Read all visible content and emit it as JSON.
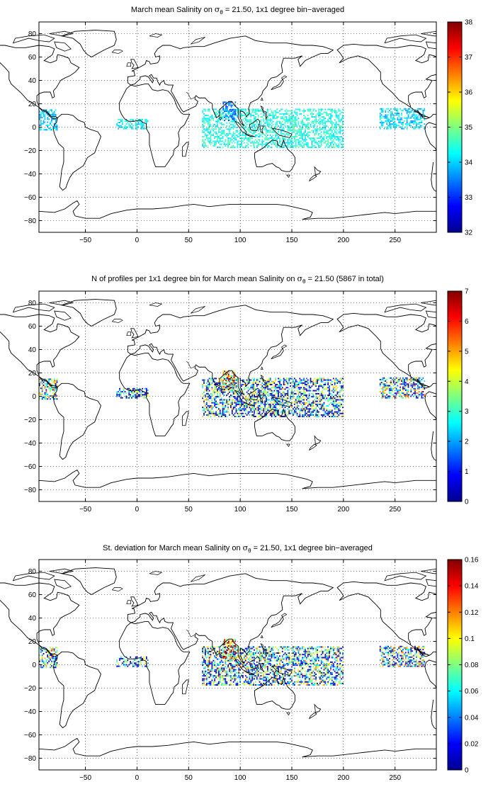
{
  "panels": [
    {
      "id": "mean",
      "title_pre": "March mean Salinity on ",
      "title_sigma": "σ",
      "title_sub": "θ",
      "title_post": " = 21.50, 1x1 degree bin−averaged",
      "colorbar_ticks": [
        "38",
        "37",
        "36",
        "35",
        "34",
        "33",
        "32"
      ]
    },
    {
      "id": "count",
      "title_pre": "N of profiles per 1x1 degree bin for March mean Salinity on ",
      "title_sigma": "σ",
      "title_sub": "θ",
      "title_post": " = 21.50 (5867 in total)",
      "colorbar_ticks": [
        "7",
        "6",
        "5",
        "4",
        "3",
        "2",
        "1",
        "0"
      ]
    },
    {
      "id": "std",
      "title_pre": "St. deviation for March mean Salinity on ",
      "title_sigma": "σ",
      "title_sub": "θ",
      "title_post": " = 21.50, 1x1 degree bin−averaged",
      "colorbar_ticks": [
        "0.16",
        "0.14",
        "0.12",
        "0.1",
        "0.08",
        "0.06",
        "0.04",
        "0.02",
        "0"
      ]
    }
  ],
  "x_tick_labels": [
    "−50",
    "0",
    "50",
    "100",
    "150",
    "200",
    "250"
  ],
  "y_tick_labels": [
    "80",
    "60",
    "40",
    "20",
    "0",
    "−20",
    "−40",
    "−60",
    "−80"
  ],
  "chart_data": [
    {
      "type": "heatmap",
      "title": "March mean Salinity on σθ = 21.50, 1x1 degree bin−averaged",
      "xlim": [
        -95,
        290
      ],
      "ylim": [
        -90,
        90
      ],
      "x_ticks": [
        -50,
        0,
        50,
        100,
        150,
        200,
        250
      ],
      "y_ticks": [
        -80,
        -60,
        -40,
        -20,
        0,
        20,
        40,
        60,
        80
      ],
      "grid": true,
      "colorbar": {
        "min": 32,
        "max": 38,
        "colormap": "jet"
      },
      "regions": [
        {
          "lon": [
            -95,
            -78
          ],
          "lat": [
            -3,
            15
          ],
          "value": 33.9
        },
        {
          "lon": [
            -20,
            10
          ],
          "lat": [
            -2,
            7
          ],
          "value": 34.1
        },
        {
          "lon": [
            63,
            113
          ],
          "lat": [
            -18,
            15
          ],
          "value": 34.4
        },
        {
          "lon": [
            83,
            95
          ],
          "lat": [
            5,
            21
          ],
          "value": 33.4
        },
        {
          "lon": [
            113,
            200
          ],
          "lat": [
            -18,
            15
          ],
          "value": 34.4
        },
        {
          "lon": [
            235,
            278
          ],
          "lat": [
            -2,
            15
          ],
          "value": 34.0
        }
      ]
    },
    {
      "type": "heatmap",
      "title": "N of profiles per 1x1 degree bin for March mean Salinity on σθ = 21.50 (5867 in total)",
      "xlim": [
        -95,
        290
      ],
      "ylim": [
        -90,
        90
      ],
      "x_ticks": [
        -50,
        0,
        50,
        100,
        150,
        200,
        250
      ],
      "y_ticks": [
        -80,
        -60,
        -40,
        -20,
        0,
        20,
        40,
        60,
        80
      ],
      "grid": true,
      "colorbar": {
        "min": 0,
        "max": 7,
        "colormap": "jet"
      },
      "total_profiles": 5867,
      "regions": [
        {
          "lon": [
            -95,
            -78
          ],
          "lat": [
            -3,
            15
          ],
          "value": 2.5
        },
        {
          "lon": [
            -20,
            10
          ],
          "lat": [
            -2,
            7
          ],
          "value": 1.5
        },
        {
          "lon": [
            63,
            113
          ],
          "lat": [
            -18,
            15
          ],
          "value": 2.0
        },
        {
          "lon": [
            83,
            95
          ],
          "lat": [
            5,
            21
          ],
          "value": 5.5
        },
        {
          "lon": [
            113,
            200
          ],
          "lat": [
            -18,
            15
          ],
          "value": 2.0
        },
        {
          "lon": [
            235,
            278
          ],
          "lat": [
            -2,
            15
          ],
          "value": 2.5
        }
      ]
    },
    {
      "type": "heatmap",
      "title": "St. deviation for March mean Salinity on σθ = 21.50, 1x1 degree bin−averaged",
      "xlim": [
        -95,
        290
      ],
      "ylim": [
        -90,
        90
      ],
      "x_ticks": [
        -50,
        0,
        50,
        100,
        150,
        200,
        250
      ],
      "y_ticks": [
        -80,
        -60,
        -40,
        -20,
        0,
        20,
        40,
        60,
        80
      ],
      "grid": true,
      "colorbar": {
        "min": 0,
        "max": 0.16,
        "colormap": "jet"
      },
      "regions": [
        {
          "lon": [
            -95,
            -78
          ],
          "lat": [
            -3,
            15
          ],
          "value": 0.06
        },
        {
          "lon": [
            -20,
            10
          ],
          "lat": [
            -2,
            7
          ],
          "value": 0.04
        },
        {
          "lon": [
            63,
            113
          ],
          "lat": [
            -18,
            15
          ],
          "value": 0.05
        },
        {
          "lon": [
            83,
            95
          ],
          "lat": [
            5,
            21
          ],
          "value": 0.12
        },
        {
          "lon": [
            113,
            200
          ],
          "lat": [
            -18,
            15
          ],
          "value": 0.05
        },
        {
          "lon": [
            235,
            278
          ],
          "lat": [
            -2,
            15
          ],
          "value": 0.06
        }
      ]
    }
  ]
}
